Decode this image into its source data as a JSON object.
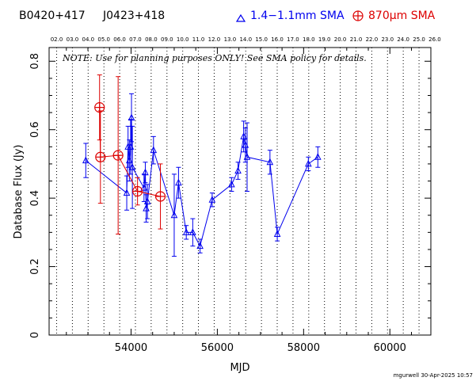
{
  "header": {
    "source_name": "B0420+417",
    "alt_name": "J0423+418",
    "legend_blue_label": "1.4−1.1mm SMA",
    "legend_red_label": "870μm SMA",
    "blue_color": "#0000ee",
    "red_color": "#dd0000"
  },
  "note": "NOTE: Use for planning purposes ONLY!  See SMA policy for details.",
  "credit": "mgurwell 30-Apr-2025 10:57",
  "chart_data": {
    "type": "scatter",
    "xlabel": "MJD",
    "ylabel": "Database Flux (Jy)",
    "xlim": [
      52100,
      60950
    ],
    "ylim": [
      0,
      0.84
    ],
    "x_ticks": [
      54000,
      56000,
      58000,
      60000
    ],
    "y_ticks": [
      0,
      0.2,
      0.4,
      0.6,
      0.8
    ],
    "top_axis_labels": [
      "02.0",
      "03.0",
      "04.0",
      "05.0",
      "06.0",
      "07.0",
      "08.0",
      "09.0",
      "10.0",
      "11.0",
      "12.0",
      "13.0",
      "14.0",
      "15.0",
      "16.0",
      "17.0",
      "18.0",
      "19.0",
      "20.0",
      "21.0",
      "22.0",
      "23.0",
      "24.0",
      "25.0",
      "26.0"
    ],
    "top_axis_positions": [
      52275,
      52640,
      53005,
      53371,
      53736,
      54101,
      54466,
      54832,
      55197,
      55562,
      55927,
      56293,
      56658,
      57023,
      57388,
      57754,
      58119,
      58484,
      58849,
      59215,
      59580,
      59945,
      60310,
      60676,
      61041
    ],
    "series": [
      {
        "name": "1.4−1.1mm SMA",
        "color": "#0000ee",
        "marker": "triangle",
        "connected": true,
        "points": [
          {
            "x": 52950,
            "y": 0.51,
            "err": 0.05
          },
          {
            "x": 53900,
            "y": 0.415,
            "err": 0.05
          },
          {
            "x": 53930,
            "y": 0.55,
            "err": 0.06
          },
          {
            "x": 53960,
            "y": 0.51,
            "err": 0.06
          },
          {
            "x": 53990,
            "y": 0.55,
            "err": 0.08
          },
          {
            "x": 54010,
            "y": 0.635,
            "err": 0.07
          },
          {
            "x": 54030,
            "y": 0.49,
            "err": 0.12
          },
          {
            "x": 54300,
            "y": 0.43,
            "err": 0.04
          },
          {
            "x": 54330,
            "y": 0.475,
            "err": 0.03
          },
          {
            "x": 54350,
            "y": 0.37,
            "err": 0.04
          },
          {
            "x": 54380,
            "y": 0.39,
            "err": 0.05
          },
          {
            "x": 54520,
            "y": 0.54,
            "err": 0.04
          },
          {
            "x": 55000,
            "y": 0.35,
            "err": 0.12
          },
          {
            "x": 55100,
            "y": 0.445,
            "err": 0.045
          },
          {
            "x": 55280,
            "y": 0.3,
            "err": 0.02
          },
          {
            "x": 55430,
            "y": 0.3,
            "err": 0.04
          },
          {
            "x": 55600,
            "y": 0.26,
            "err": 0.02
          },
          {
            "x": 55880,
            "y": 0.395,
            "err": 0.02
          },
          {
            "x": 56330,
            "y": 0.44,
            "err": 0.02
          },
          {
            "x": 56480,
            "y": 0.48,
            "err": 0.025
          },
          {
            "x": 56610,
            "y": 0.58,
            "err": 0.045
          },
          {
            "x": 56650,
            "y": 0.555,
            "err": 0.05
          },
          {
            "x": 56690,
            "y": 0.52,
            "err": 0.1
          },
          {
            "x": 57220,
            "y": 0.505,
            "err": 0.035
          },
          {
            "x": 57390,
            "y": 0.295,
            "err": 0.02
          },
          {
            "x": 58110,
            "y": 0.5,
            "err": 0.02
          },
          {
            "x": 58330,
            "y": 0.52,
            "err": 0.03
          }
        ]
      },
      {
        "name": "870μm SMA",
        "color": "#dd0000",
        "marker": "circle-plus",
        "connected": true,
        "points": [
          {
            "x": 53270,
            "y": 0.665,
            "err": 0.095
          },
          {
            "x": 53290,
            "y": 0.52,
            "err": 0.135
          },
          {
            "x": 53700,
            "y": 0.525,
            "err": 0.23
          },
          {
            "x": 54150,
            "y": 0.42,
            "err": 0.04
          },
          {
            "x": 54680,
            "y": 0.405,
            "err": 0.095
          }
        ]
      }
    ]
  }
}
